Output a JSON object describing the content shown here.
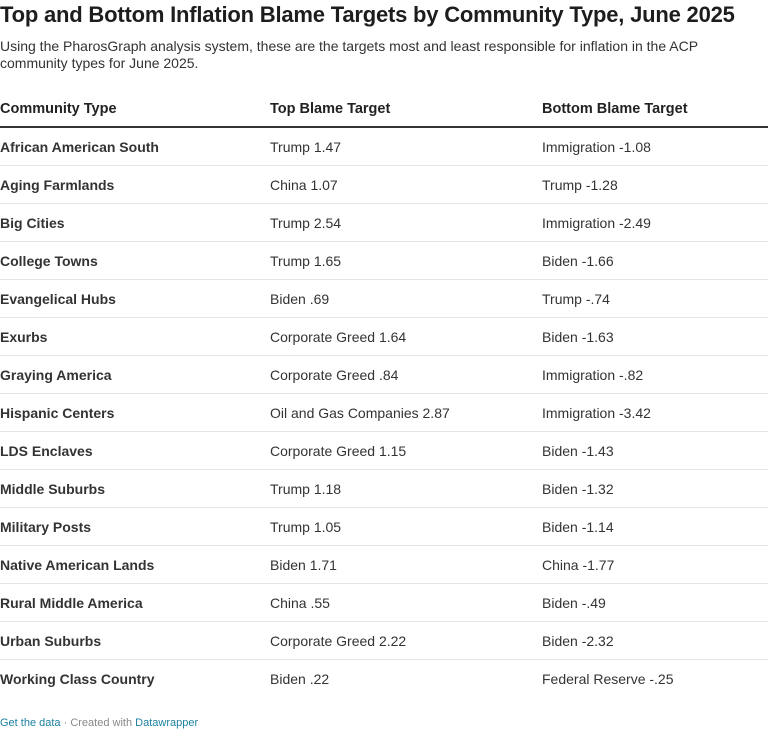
{
  "title": "Top and Bottom Inflation Blame Targets by Community Type, June 2025",
  "subtitle": "Using the PharosGraph analysis system, these are the targets most and least responsible for inflation in the ACP community types for June 2025.",
  "chart_data": {
    "type": "table",
    "columns": [
      "Community Type",
      "Top Blame Target",
      "Bottom Blame Target"
    ],
    "rows": [
      {
        "community": "African American South",
        "top": "Trump 1.47",
        "bottom": "Immigration -1.08"
      },
      {
        "community": "Aging Farmlands",
        "top": "China 1.07",
        "bottom": "Trump -1.28"
      },
      {
        "community": "Big Cities",
        "top": "Trump 2.54",
        "bottom": "Immigration -2.49"
      },
      {
        "community": "College Towns",
        "top": "Trump 1.65",
        "bottom": "Biden -1.66"
      },
      {
        "community": "Evangelical Hubs",
        "top": "Biden .69",
        "bottom": "Trump -.74"
      },
      {
        "community": "Exurbs",
        "top": "Corporate Greed 1.64",
        "bottom": "Biden -1.63"
      },
      {
        "community": "Graying America",
        "top": "Corporate Greed .84",
        "bottom": "Immigration -.82"
      },
      {
        "community": "Hispanic Centers",
        "top": "Oil and Gas Companies 2.87",
        "bottom": "Immigration -3.42"
      },
      {
        "community": "LDS Enclaves",
        "top": "Corporate Greed 1.15",
        "bottom": "Biden -1.43"
      },
      {
        "community": "Middle Suburbs",
        "top": "Trump 1.18",
        "bottom": "Biden -1.32"
      },
      {
        "community": "Military Posts",
        "top": "Trump 1.05",
        "bottom": "Biden -1.14"
      },
      {
        "community": "Native American Lands",
        "top": "Biden 1.71",
        "bottom": "China -1.77"
      },
      {
        "community": "Rural Middle America",
        "top": "China .55",
        "bottom": "Biden -.49"
      },
      {
        "community": "Urban Suburbs",
        "top": "Corporate Greed 2.22",
        "bottom": "Biden -2.32"
      },
      {
        "community": "Working Class Country",
        "top": "Biden .22",
        "bottom": "Federal Reserve -.25"
      }
    ]
  },
  "footer": {
    "get_data": "Get the data",
    "separator": " · Created with ",
    "tool": "Datawrapper"
  },
  "colors": {
    "link": "#1d81a2",
    "header_rule": "#333333",
    "row_rule": "#e6e6e6"
  }
}
